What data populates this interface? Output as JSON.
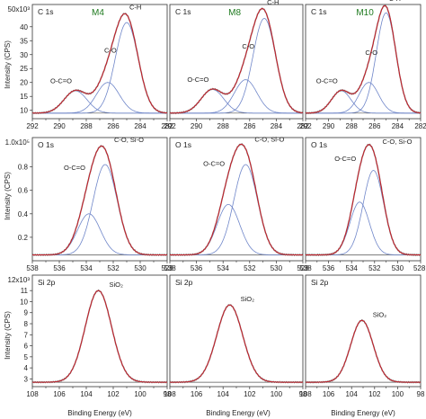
{
  "figure": {
    "ylabel": "Intensity (CPS)",
    "xlabel": "Binding Energy (eV)"
  },
  "colors": {
    "envelope": "#c8202a",
    "raw": "#7d7d7d",
    "component": "#6f86c9",
    "background": "#555555",
    "sample": "#1f7a1f"
  },
  "chart_data": [
    {
      "type": "line",
      "panel": "C 1s",
      "sample": "M4",
      "ymultiplier": "50x10³",
      "xlim": [
        292,
        282
      ],
      "ylim": [
        7,
        48
      ],
      "xticks": [
        292,
        290,
        288,
        286,
        284,
        282
      ],
      "yticks": [
        10,
        15,
        20,
        25,
        30,
        35,
        40
      ],
      "ytick_labels": [
        "10",
        "15",
        "20",
        "25",
        "30",
        "35",
        "40"
      ],
      "baseline": 9,
      "components": [
        {
          "label": "O-C=O",
          "center": 288.8,
          "height": 8.0,
          "fwhm": 2.0
        },
        {
          "label": "C-O",
          "center": 286.4,
          "height": 11.0,
          "fwhm": 2.0
        },
        {
          "label": "C-H",
          "center": 285.0,
          "height": 32.5,
          "fwhm": 2.0
        }
      ]
    },
    {
      "type": "line",
      "panel": "C 1s",
      "sample": "M8",
      "xlim": [
        292,
        282
      ],
      "ylim": [
        7,
        48
      ],
      "xticks": [
        292,
        290,
        288,
        286,
        284,
        282
      ],
      "baseline": 9,
      "components": [
        {
          "label": "O-C=O",
          "center": 288.8,
          "height": 8.5,
          "fwhm": 2.0
        },
        {
          "label": "C-O",
          "center": 286.3,
          "height": 12.0,
          "fwhm": 2.0
        },
        {
          "label": "C-H",
          "center": 284.9,
          "height": 34.0,
          "fwhm": 2.0
        }
      ]
    },
    {
      "type": "line",
      "panel": "C 1s",
      "sample": "M10",
      "xlim": [
        292,
        282
      ],
      "ylim": [
        7,
        48
      ],
      "xticks": [
        292,
        290,
        288,
        286,
        284,
        282
      ],
      "baseline": 9,
      "components": [
        {
          "label": "O-C=O",
          "center": 288.9,
          "height": 8.0,
          "fwhm": 2.0
        },
        {
          "label": "C-O",
          "center": 286.5,
          "height": 11.0,
          "fwhm": 2.0
        },
        {
          "label": "C-H",
          "center": 285.0,
          "height": 36.0,
          "fwhm": 2.0
        }
      ]
    },
    {
      "type": "line",
      "panel": "O 1s",
      "ymultiplier": "1.0x10⁵",
      "xlim": [
        538,
        528
      ],
      "ylim": [
        0,
        1.05
      ],
      "xticks": [
        538,
        536,
        534,
        532,
        530,
        528
      ],
      "yticks": [
        0.2,
        0.4,
        0.6,
        0.8
      ],
      "ytick_labels": [
        "0.2",
        "0.4",
        "0.6",
        "0.8"
      ],
      "baseline": 0.05,
      "components": [
        {
          "label": "O-C=O",
          "center": 533.8,
          "height": 0.35,
          "fwhm": 2.0
        },
        {
          "label": "C-O, Si-O",
          "center": 532.6,
          "height": 0.77,
          "fwhm": 2.1
        }
      ]
    },
    {
      "type": "line",
      "panel": "O 1s",
      "xlim": [
        538,
        528
      ],
      "ylim": [
        0,
        1.05
      ],
      "xticks": [
        538,
        536,
        534,
        532,
        530,
        528
      ],
      "baseline": 0.05,
      "components": [
        {
          "label": "O-C=O",
          "center": 533.6,
          "height": 0.43,
          "fwhm": 2.0
        },
        {
          "label": "C-O, Si-O",
          "center": 532.3,
          "height": 0.77,
          "fwhm": 2.1
        }
      ]
    },
    {
      "type": "line",
      "panel": "O 1s",
      "xlim": [
        538,
        528
      ],
      "ylim": [
        0,
        1.05
      ],
      "xticks": [
        538,
        536,
        534,
        532,
        530,
        528
      ],
      "xtick_labels": [
        "538",
        "536",
        "534",
        "532",
        "530",
        "528·"
      ],
      "baseline": 0.05,
      "components": [
        {
          "label": "O-C=O",
          "center": 533.3,
          "height": 0.45,
          "fwhm": 2.0
        },
        {
          "label": "C-O, Si-O",
          "center": 532.1,
          "height": 0.72,
          "fwhm": 2.1
        }
      ]
    },
    {
      "type": "line",
      "panel": "Si 2p",
      "ymultiplier": "12x10³",
      "xlim": [
        108,
        98
      ],
      "ylim": [
        2.3,
        12.4
      ],
      "xticks": [
        108,
        106,
        104,
        102,
        100,
        98
      ],
      "yticks": [
        3,
        4,
        5,
        6,
        7,
        8,
        9,
        10,
        11
      ],
      "ytick_labels": [
        "3",
        "4",
        "5",
        "6",
        "7",
        "8",
        "9",
        "10",
        "11"
      ],
      "baseline": 2.7,
      "components": [
        {
          "label": "SiO₂",
          "center": 103.1,
          "height": 8.3,
          "fwhm": 2.3
        }
      ]
    },
    {
      "type": "line",
      "panel": "Si 2p",
      "xlim": [
        108,
        98
      ],
      "ylim": [
        2.3,
        12.4
      ],
      "xticks": [
        108,
        106,
        104,
        102,
        100,
        98
      ],
      "baseline": 2.7,
      "components": [
        {
          "label": "SiO₂",
          "center": 103.5,
          "height": 7.0,
          "fwhm": 2.3
        }
      ]
    },
    {
      "type": "line",
      "panel": "Si 2p",
      "xlim": [
        108,
        98
      ],
      "ylim": [
        2.3,
        12.4
      ],
      "xticks": [
        108,
        106,
        104,
        102,
        100,
        98
      ],
      "baseline": 2.7,
      "components": [
        {
          "label": "SiO₂",
          "center": 103.1,
          "height": 5.6,
          "fwhm": 2.3
        }
      ]
    }
  ]
}
